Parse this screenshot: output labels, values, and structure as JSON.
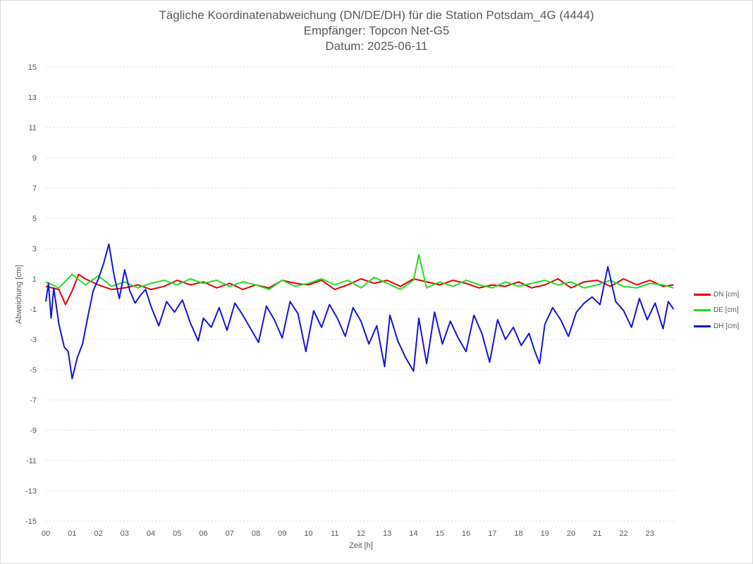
{
  "title": {
    "line1": "Tägliche Koordinatenabweichung (DN/DE/DH) für die Station Potsdam_4G (4444)",
    "line2": "Empfänger: Topcon Net-G5",
    "line3": "Datum: 2025-06-11"
  },
  "chart_data": {
    "type": "line",
    "title": "Tägliche Koordinatenabweichung (DN/DE/DH) für die Station Potsdam_4G (4444)",
    "subtitle": [
      "Empfänger: Topcon Net-G5",
      "Datum: 2025-06-11"
    ],
    "xlabel": "Zeit [h]",
    "ylabel": "Abweichung [cm]",
    "xlim": [
      0,
      24
    ],
    "ylim": [
      -15,
      15
    ],
    "y_ticks": [
      "15",
      "13",
      "11",
      "9",
      "7",
      "5",
      "3",
      "1",
      "-1",
      "-3",
      "-5",
      "-7",
      "-9",
      "-11",
      "-13",
      "-15"
    ],
    "x_ticks": [
      "00",
      "01",
      "02",
      "03",
      "04",
      "05",
      "06",
      "07",
      "08",
      "09",
      "10",
      "11",
      "12",
      "13",
      "14",
      "15",
      "16",
      "17",
      "18",
      "19",
      "20",
      "21",
      "22",
      "23"
    ],
    "grid": "horizontal dotted",
    "legend_position": "right",
    "series": [
      {
        "name": "DN [cm]",
        "color": "#e00000",
        "x": [
          0,
          0.5,
          0.75,
          1,
          1.25,
          1.5,
          2,
          2.5,
          3,
          3.5,
          4,
          4.5,
          5,
          5.5,
          6,
          6.5,
          7,
          7.5,
          8,
          8.5,
          9,
          9.5,
          10,
          10.5,
          11,
          11.5,
          12,
          12.5,
          13,
          13.5,
          14,
          14.5,
          15,
          15.5,
          16,
          16.5,
          17,
          17.5,
          18,
          18.5,
          19,
          19.5,
          20,
          20.5,
          21,
          21.5,
          22,
          22.5,
          23,
          23.5,
          23.9
        ],
        "y": [
          0.5,
          0.3,
          -0.7,
          0.2,
          1.3,
          1.0,
          0.6,
          0.3,
          0.4,
          0.6,
          0.3,
          0.5,
          0.9,
          0.6,
          0.8,
          0.4,
          0.7,
          0.3,
          0.6,
          0.4,
          0.9,
          0.7,
          0.6,
          0.9,
          0.3,
          0.6,
          1.0,
          0.7,
          0.9,
          0.5,
          1.0,
          0.8,
          0.6,
          0.9,
          0.7,
          0.4,
          0.6,
          0.5,
          0.8,
          0.4,
          0.6,
          1.0,
          0.4,
          0.8,
          0.9,
          0.5,
          1.0,
          0.6,
          0.9,
          0.5,
          0.6
        ]
      },
      {
        "name": "DE [cm]",
        "color": "#22dd22",
        "x": [
          0,
          0.5,
          1,
          1.5,
          2,
          2.5,
          3,
          3.5,
          4,
          4.5,
          5,
          5.5,
          6,
          6.5,
          7,
          7.5,
          8,
          8.5,
          9,
          9.5,
          10,
          10.5,
          11,
          11.5,
          12,
          12.5,
          13,
          13.5,
          14,
          14.2,
          14.5,
          15,
          15.5,
          16,
          16.5,
          17,
          17.5,
          18,
          18.5,
          19,
          19.5,
          20,
          20.5,
          21,
          21.5,
          22,
          22.5,
          23,
          23.5,
          23.9
        ],
        "y": [
          0.8,
          0.4,
          1.3,
          0.6,
          1.2,
          0.5,
          0.8,
          0.4,
          0.7,
          0.9,
          0.6,
          1.0,
          0.7,
          0.9,
          0.5,
          0.8,
          0.6,
          0.3,
          0.9,
          0.5,
          0.7,
          1.0,
          0.6,
          0.9,
          0.4,
          1.1,
          0.7,
          0.3,
          0.9,
          2.6,
          0.4,
          0.8,
          0.5,
          0.9,
          0.6,
          0.4,
          0.8,
          0.5,
          0.7,
          0.9,
          0.6,
          0.8,
          0.4,
          0.6,
          0.9,
          0.5,
          0.4,
          0.7,
          0.6,
          0.4
        ]
      },
      {
        "name": "DH [cm]",
        "color": "#1414dc",
        "x": [
          0,
          0.1,
          0.2,
          0.3,
          0.5,
          0.7,
          0.85,
          1,
          1.2,
          1.4,
          1.6,
          1.8,
          2,
          2.2,
          2.4,
          2.6,
          2.8,
          3,
          3.2,
          3.4,
          3.6,
          3.8,
          4,
          4.3,
          4.6,
          4.9,
          5.2,
          5.5,
          5.8,
          6.0,
          6.3,
          6.6,
          6.9,
          7.2,
          7.5,
          7.8,
          8.1,
          8.4,
          8.7,
          9.0,
          9.3,
          9.6,
          9.9,
          10.2,
          10.5,
          10.8,
          11.1,
          11.4,
          11.7,
          12.0,
          12.3,
          12.6,
          12.9,
          13.1,
          13.4,
          13.7,
          14.0,
          14.2,
          14.5,
          14.8,
          15.1,
          15.4,
          15.7,
          16.0,
          16.3,
          16.6,
          16.9,
          17.2,
          17.5,
          17.8,
          18.1,
          18.4,
          18.6,
          18.8,
          19.0,
          19.3,
          19.6,
          19.9,
          20.2,
          20.5,
          20.8,
          21.1,
          21.4,
          21.7,
          22.0,
          22.3,
          22.6,
          22.9,
          23.2,
          23.5,
          23.7,
          23.9
        ],
        "y": [
          -0.5,
          0.7,
          -1.6,
          0.4,
          -2.0,
          -3.5,
          -3.8,
          -5.6,
          -4.2,
          -3.3,
          -1.5,
          0.2,
          1.0,
          2.0,
          3.3,
          1.2,
          -0.3,
          1.6,
          0.2,
          -0.6,
          -0.1,
          0.3,
          -0.8,
          -2.1,
          -0.5,
          -1.2,
          -0.4,
          -1.9,
          -3.1,
          -1.6,
          -2.2,
          -0.9,
          -2.4,
          -0.6,
          -1.4,
          -2.3,
          -3.2,
          -0.8,
          -1.7,
          -2.9,
          -0.5,
          -1.3,
          -3.8,
          -1.1,
          -2.2,
          -0.7,
          -1.6,
          -2.8,
          -0.9,
          -1.8,
          -3.3,
          -2.1,
          -4.8,
          -1.4,
          -3.1,
          -4.2,
          -5.1,
          -1.6,
          -4.6,
          -1.2,
          -3.3,
          -1.8,
          -2.9,
          -3.8,
          -1.4,
          -2.6,
          -4.5,
          -1.7,
          -3.0,
          -2.2,
          -3.4,
          -2.6,
          -3.7,
          -4.6,
          -2.0,
          -0.9,
          -1.7,
          -2.8,
          -1.2,
          -0.6,
          -0.2,
          -0.7,
          1.8,
          -0.5,
          -1.1,
          -2.2,
          -0.3,
          -1.7,
          -0.6,
          -2.3,
          -0.5,
          -1.0
        ]
      }
    ]
  }
}
